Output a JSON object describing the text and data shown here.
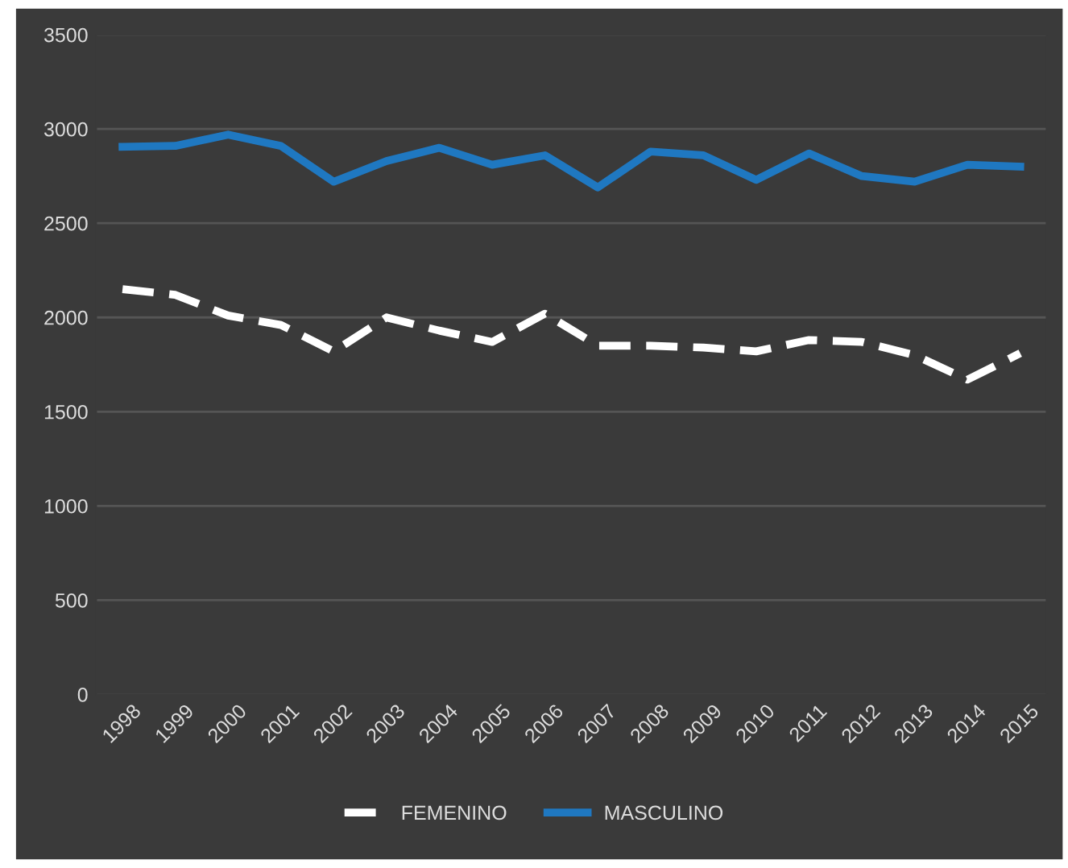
{
  "chart_data": {
    "type": "line",
    "categories": [
      "1998",
      "1999",
      "2000",
      "2001",
      "2002",
      "2003",
      "2004",
      "2005",
      "2006",
      "2007",
      "2008",
      "2009",
      "2010",
      "2011",
      "2012",
      "2013",
      "2014",
      "2015"
    ],
    "series": [
      {
        "name": "FEMENINO",
        "color": "#ffffff",
        "line_style": "dashed",
        "values": [
          2150,
          2120,
          2010,
          1960,
          1820,
          2000,
          1930,
          1870,
          2020,
          1850,
          1850,
          1840,
          1820,
          1880,
          1870,
          1800,
          1670,
          1810
        ]
      },
      {
        "name": "MASCULINO",
        "color": "#1f78c1",
        "line_style": "solid",
        "values": [
          2905,
          2910,
          2970,
          2910,
          2720,
          2830,
          2900,
          2810,
          2860,
          2690,
          2880,
          2860,
          2730,
          2870,
          2750,
          2720,
          2810,
          2800
        ]
      }
    ],
    "ylim": [
      0,
      3500
    ],
    "yticks": [
      0,
      500,
      1000,
      1500,
      2000,
      2500,
      3000,
      3500
    ],
    "grid": "y",
    "legend": "bottom",
    "marker": "none"
  }
}
